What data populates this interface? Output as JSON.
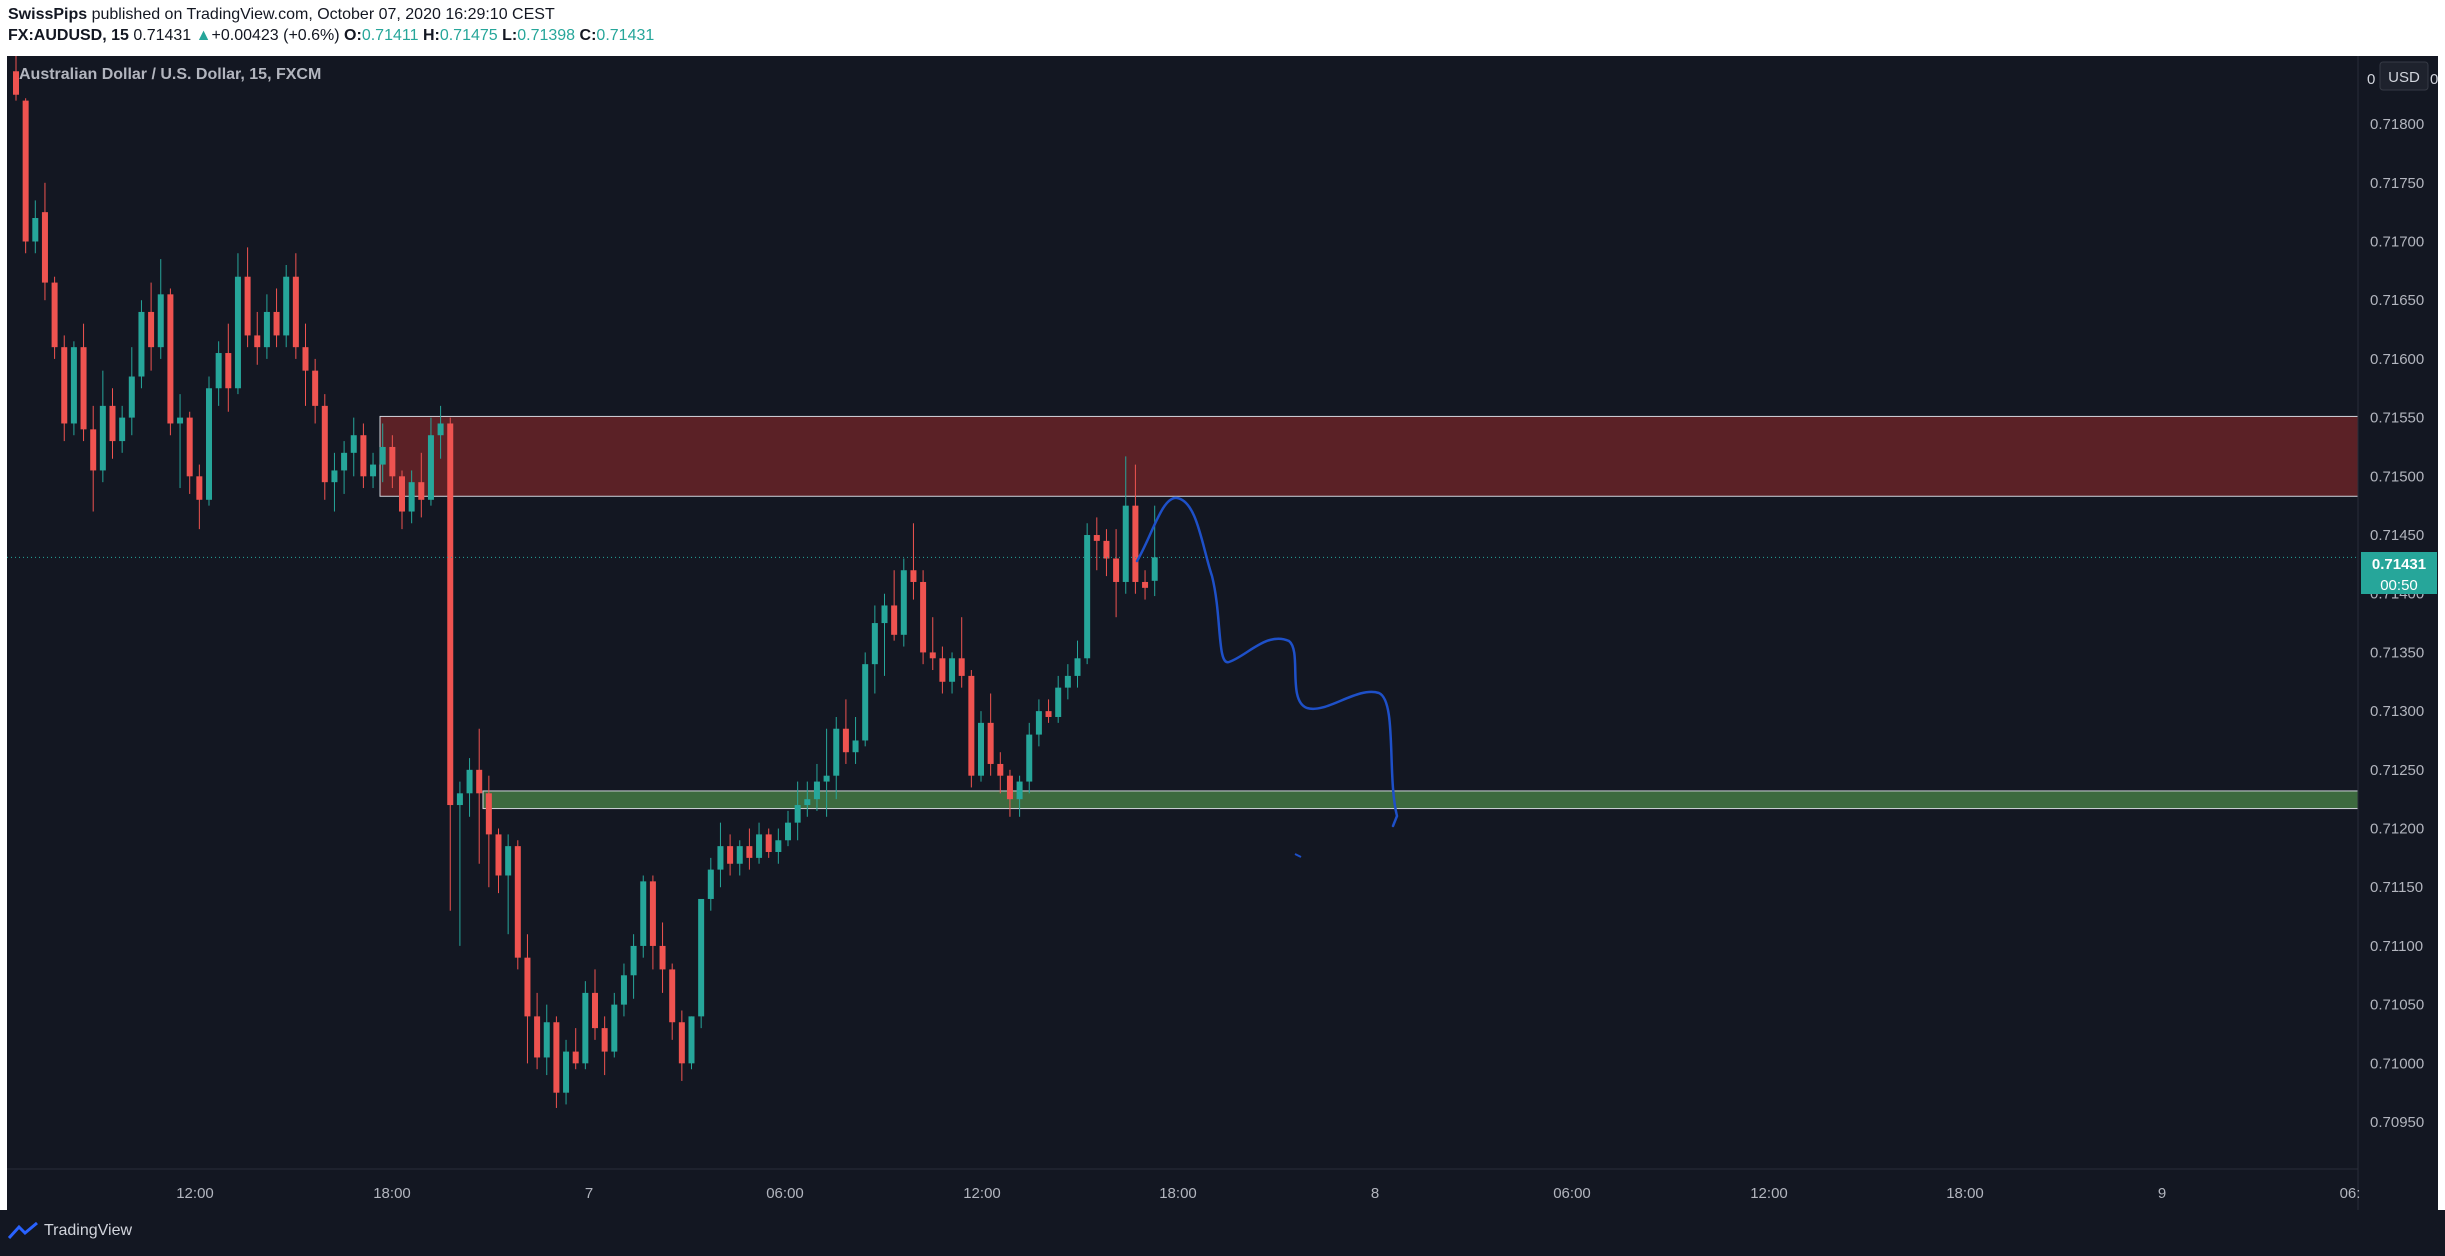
{
  "header": {
    "author": "SwissPips",
    "published_text": "published on TradingView.com, October 07, 2020 16:29:10 CEST",
    "symbol": "FX:AUDUSD, 15",
    "last": "0.71431",
    "change_arrow": "▲",
    "change": "+0.00423 (+0.6%)",
    "o_label": "O:",
    "o_value": "0.71411",
    "h_label": "H:",
    "h_value": "0.71475",
    "l_label": "L:",
    "l_value": "0.71398",
    "c_label": "C:",
    "c_value": "0.71431"
  },
  "chart": {
    "instrument_label": "Australian Dollar / U.S. Dollar, 15, FXCM",
    "currency_button": "USD",
    "price_axis_top_clip": "0",
    "price_axis_top_clip_end": "0",
    "y_tick_labels": [
      "0.71800",
      "0.71750",
      "0.71700",
      "0.71650",
      "0.71600",
      "0.71550",
      "0.71500",
      "0.71450",
      "0.71400",
      "0.71350",
      "0.71300",
      "0.71250",
      "0.71200",
      "0.71150",
      "0.71100",
      "0.71050",
      "0.71000",
      "0.70950"
    ],
    "x_tick_labels": [
      "12:00",
      "18:00",
      "7",
      "06:00",
      "12:00",
      "18:00",
      "8",
      "06:00",
      "12:00",
      "18:00",
      "9",
      "06:"
    ],
    "last_price_label": "0.71431",
    "countdown_label": "00:50",
    "colors": {
      "background": "#131722",
      "up": "#26a69a",
      "down": "#ef5350",
      "resistance_zone": "#5b2126",
      "support_zone": "#3d6a3f",
      "drawing": "#1e50c8"
    }
  },
  "chart_data": {
    "type": "candlestick",
    "symbol": "FX:AUDUSD",
    "timeframe": "15",
    "ylim": [
      0.7091,
      0.71858
    ],
    "zones": [
      {
        "name": "resistance",
        "low": 0.71483,
        "high": 0.71551
      },
      {
        "name": "support",
        "low": 0.71217,
        "high": 0.71232
      }
    ],
    "last_price": 0.71431,
    "candles": [
      {
        "t": 0,
        "o": 0.71845,
        "h": 0.71858,
        "l": 0.7182,
        "c": 0.71825
      },
      {
        "t": 1,
        "o": 0.7182,
        "h": 0.71822,
        "l": 0.7169,
        "c": 0.717
      },
      {
        "t": 2,
        "o": 0.717,
        "h": 0.71735,
        "l": 0.7169,
        "c": 0.7172
      },
      {
        "t": 3,
        "o": 0.71725,
        "h": 0.7175,
        "l": 0.7165,
        "c": 0.71665
      },
      {
        "t": 4,
        "o": 0.71665,
        "h": 0.7167,
        "l": 0.716,
        "c": 0.7161
      },
      {
        "t": 5,
        "o": 0.7161,
        "h": 0.7162,
        "l": 0.7153,
        "c": 0.71545
      },
      {
        "t": 6,
        "o": 0.71545,
        "h": 0.71615,
        "l": 0.71535,
        "c": 0.7161
      },
      {
        "t": 7,
        "o": 0.7161,
        "h": 0.7163,
        "l": 0.7153,
        "c": 0.7154
      },
      {
        "t": 8,
        "o": 0.7154,
        "h": 0.7156,
        "l": 0.7147,
        "c": 0.71505
      },
      {
        "t": 9,
        "o": 0.71505,
        "h": 0.7159,
        "l": 0.71495,
        "c": 0.7156
      },
      {
        "t": 10,
        "o": 0.7156,
        "h": 0.71575,
        "l": 0.71515,
        "c": 0.7153
      },
      {
        "t": 11,
        "o": 0.7153,
        "h": 0.7156,
        "l": 0.7152,
        "c": 0.7155
      },
      {
        "t": 12,
        "o": 0.7155,
        "h": 0.7161,
        "l": 0.71535,
        "c": 0.71585
      },
      {
        "t": 13,
        "o": 0.71585,
        "h": 0.7165,
        "l": 0.71575,
        "c": 0.7164
      },
      {
        "t": 14,
        "o": 0.7164,
        "h": 0.71665,
        "l": 0.7159,
        "c": 0.7161
      },
      {
        "t": 15,
        "o": 0.7161,
        "h": 0.71685,
        "l": 0.716,
        "c": 0.71655
      },
      {
        "t": 16,
        "o": 0.71655,
        "h": 0.7166,
        "l": 0.71535,
        "c": 0.71545
      },
      {
        "t": 17,
        "o": 0.71545,
        "h": 0.7157,
        "l": 0.7149,
        "c": 0.7155
      },
      {
        "t": 18,
        "o": 0.7155,
        "h": 0.71555,
        "l": 0.71485,
        "c": 0.715
      },
      {
        "t": 19,
        "o": 0.715,
        "h": 0.7151,
        "l": 0.71455,
        "c": 0.7148
      },
      {
        "t": 20,
        "o": 0.7148,
        "h": 0.71585,
        "l": 0.71475,
        "c": 0.71575
      },
      {
        "t": 21,
        "o": 0.71575,
        "h": 0.71615,
        "l": 0.7156,
        "c": 0.71605
      },
      {
        "t": 22,
        "o": 0.71605,
        "h": 0.7163,
        "l": 0.71555,
        "c": 0.71575
      },
      {
        "t": 23,
        "o": 0.71575,
        "h": 0.7169,
        "l": 0.7157,
        "c": 0.7167
      },
      {
        "t": 24,
        "o": 0.7167,
        "h": 0.71695,
        "l": 0.7161,
        "c": 0.7162
      },
      {
        "t": 25,
        "o": 0.7162,
        "h": 0.7164,
        "l": 0.71595,
        "c": 0.7161
      },
      {
        "t": 26,
        "o": 0.7161,
        "h": 0.71655,
        "l": 0.716,
        "c": 0.7164
      },
      {
        "t": 27,
        "o": 0.7164,
        "h": 0.7166,
        "l": 0.7161,
        "c": 0.7162
      },
      {
        "t": 28,
        "o": 0.7162,
        "h": 0.7168,
        "l": 0.7161,
        "c": 0.7167
      },
      {
        "t": 29,
        "o": 0.7167,
        "h": 0.7169,
        "l": 0.716,
        "c": 0.7161
      },
      {
        "t": 30,
        "o": 0.7161,
        "h": 0.7163,
        "l": 0.7156,
        "c": 0.7159
      },
      {
        "t": 31,
        "o": 0.7159,
        "h": 0.716,
        "l": 0.71545,
        "c": 0.7156
      },
      {
        "t": 32,
        "o": 0.7156,
        "h": 0.7157,
        "l": 0.7148,
        "c": 0.71495
      },
      {
        "t": 33,
        "o": 0.71495,
        "h": 0.7152,
        "l": 0.7147,
        "c": 0.71505
      },
      {
        "t": 34,
        "o": 0.71505,
        "h": 0.7153,
        "l": 0.71485,
        "c": 0.7152
      },
      {
        "t": 35,
        "o": 0.7152,
        "h": 0.7155,
        "l": 0.715,
        "c": 0.71535
      },
      {
        "t": 36,
        "o": 0.71535,
        "h": 0.71545,
        "l": 0.7149,
        "c": 0.715
      },
      {
        "t": 37,
        "o": 0.715,
        "h": 0.7152,
        "l": 0.7149,
        "c": 0.7151
      },
      {
        "t": 38,
        "o": 0.7151,
        "h": 0.71545,
        "l": 0.71495,
        "c": 0.71525
      },
      {
        "t": 39,
        "o": 0.71525,
        "h": 0.71535,
        "l": 0.7149,
        "c": 0.715
      },
      {
        "t": 40,
        "o": 0.715,
        "h": 0.71505,
        "l": 0.71455,
        "c": 0.7147
      },
      {
        "t": 41,
        "o": 0.7147,
        "h": 0.71505,
        "l": 0.7146,
        "c": 0.71495
      },
      {
        "t": 42,
        "o": 0.71495,
        "h": 0.7152,
        "l": 0.71465,
        "c": 0.7148
      },
      {
        "t": 43,
        "o": 0.7148,
        "h": 0.7155,
        "l": 0.71475,
        "c": 0.71535
      },
      {
        "t": 44,
        "o": 0.71535,
        "h": 0.7156,
        "l": 0.71515,
        "c": 0.71545
      },
      {
        "t": 45,
        "o": 0.71545,
        "h": 0.7155,
        "l": 0.7113,
        "c": 0.7122
      },
      {
        "t": 46,
        "o": 0.7122,
        "h": 0.7124,
        "l": 0.711,
        "c": 0.7123
      },
      {
        "t": 47,
        "o": 0.7123,
        "h": 0.7126,
        "l": 0.7121,
        "c": 0.7125
      },
      {
        "t": 48,
        "o": 0.7125,
        "h": 0.71285,
        "l": 0.7117,
        "c": 0.7123
      },
      {
        "t": 49,
        "o": 0.7123,
        "h": 0.71245,
        "l": 0.7115,
        "c": 0.71195
      },
      {
        "t": 50,
        "o": 0.71195,
        "h": 0.712,
        "l": 0.71145,
        "c": 0.7116
      },
      {
        "t": 51,
        "o": 0.7116,
        "h": 0.71195,
        "l": 0.7111,
        "c": 0.71185
      },
      {
        "t": 52,
        "o": 0.71185,
        "h": 0.7119,
        "l": 0.7108,
        "c": 0.7109
      },
      {
        "t": 53,
        "o": 0.7109,
        "h": 0.7111,
        "l": 0.71,
        "c": 0.7104
      },
      {
        "t": 54,
        "o": 0.7104,
        "h": 0.7106,
        "l": 0.70995,
        "c": 0.71005
      },
      {
        "t": 55,
        "o": 0.71005,
        "h": 0.7105,
        "l": 0.7099,
        "c": 0.71035
      },
      {
        "t": 56,
        "o": 0.71035,
        "h": 0.7104,
        "l": 0.70962,
        "c": 0.70975
      },
      {
        "t": 57,
        "o": 0.70975,
        "h": 0.7102,
        "l": 0.70965,
        "c": 0.7101
      },
      {
        "t": 58,
        "o": 0.7101,
        "h": 0.7103,
        "l": 0.70995,
        "c": 0.71
      },
      {
        "t": 59,
        "o": 0.71,
        "h": 0.7107,
        "l": 0.70995,
        "c": 0.7106
      },
      {
        "t": 60,
        "o": 0.7106,
        "h": 0.7108,
        "l": 0.7102,
        "c": 0.7103
      },
      {
        "t": 61,
        "o": 0.7103,
        "h": 0.7104,
        "l": 0.7099,
        "c": 0.7101
      },
      {
        "t": 62,
        "o": 0.7101,
        "h": 0.7106,
        "l": 0.71005,
        "c": 0.7105
      },
      {
        "t": 63,
        "o": 0.7105,
        "h": 0.71085,
        "l": 0.7104,
        "c": 0.71075
      },
      {
        "t": 64,
        "o": 0.71075,
        "h": 0.7111,
        "l": 0.71055,
        "c": 0.711
      },
      {
        "t": 65,
        "o": 0.711,
        "h": 0.7116,
        "l": 0.7109,
        "c": 0.71155
      },
      {
        "t": 66,
        "o": 0.71155,
        "h": 0.7116,
        "l": 0.7108,
        "c": 0.711
      },
      {
        "t": 67,
        "o": 0.711,
        "h": 0.7112,
        "l": 0.7106,
        "c": 0.7108
      },
      {
        "t": 68,
        "o": 0.7108,
        "h": 0.71085,
        "l": 0.7102,
        "c": 0.71035
      },
      {
        "t": 69,
        "o": 0.71035,
        "h": 0.71045,
        "l": 0.70985,
        "c": 0.71
      },
      {
        "t": 70,
        "o": 0.71,
        "h": 0.7104,
        "l": 0.70995,
        "c": 0.7104
      },
      {
        "t": 71,
        "o": 0.7104,
        "h": 0.7114,
        "l": 0.7103,
        "c": 0.7114
      },
      {
        "t": 72,
        "o": 0.7114,
        "h": 0.71175,
        "l": 0.7113,
        "c": 0.71165
      },
      {
        "t": 73,
        "o": 0.71165,
        "h": 0.71205,
        "l": 0.7115,
        "c": 0.71185
      },
      {
        "t": 74,
        "o": 0.71185,
        "h": 0.71195,
        "l": 0.7116,
        "c": 0.7117
      },
      {
        "t": 75,
        "o": 0.7117,
        "h": 0.7119,
        "l": 0.7116,
        "c": 0.71185
      },
      {
        "t": 76,
        "o": 0.71185,
        "h": 0.712,
        "l": 0.71165,
        "c": 0.71175
      },
      {
        "t": 77,
        "o": 0.71175,
        "h": 0.71205,
        "l": 0.7117,
        "c": 0.71195
      },
      {
        "t": 78,
        "o": 0.71195,
        "h": 0.712,
        "l": 0.71175,
        "c": 0.7118
      },
      {
        "t": 79,
        "o": 0.7118,
        "h": 0.712,
        "l": 0.7117,
        "c": 0.7119
      },
      {
        "t": 80,
        "o": 0.7119,
        "h": 0.71215,
        "l": 0.71185,
        "c": 0.71205
      },
      {
        "t": 81,
        "o": 0.71205,
        "h": 0.7124,
        "l": 0.7119,
        "c": 0.7122
      },
      {
        "t": 82,
        "o": 0.7122,
        "h": 0.7124,
        "l": 0.7121,
        "c": 0.71225
      },
      {
        "t": 83,
        "o": 0.71225,
        "h": 0.71255,
        "l": 0.71215,
        "c": 0.7124
      },
      {
        "t": 84,
        "o": 0.7124,
        "h": 0.71285,
        "l": 0.7121,
        "c": 0.71245
      },
      {
        "t": 85,
        "o": 0.71245,
        "h": 0.71295,
        "l": 0.71225,
        "c": 0.71285
      },
      {
        "t": 86,
        "o": 0.71285,
        "h": 0.7131,
        "l": 0.71255,
        "c": 0.71265
      },
      {
        "t": 87,
        "o": 0.71265,
        "h": 0.71295,
        "l": 0.71255,
        "c": 0.71275
      },
      {
        "t": 88,
        "o": 0.71275,
        "h": 0.7135,
        "l": 0.7127,
        "c": 0.7134
      },
      {
        "t": 89,
        "o": 0.7134,
        "h": 0.7139,
        "l": 0.71315,
        "c": 0.71375
      },
      {
        "t": 90,
        "o": 0.71375,
        "h": 0.714,
        "l": 0.7133,
        "c": 0.7139
      },
      {
        "t": 91,
        "o": 0.7139,
        "h": 0.7142,
        "l": 0.7136,
        "c": 0.71365
      },
      {
        "t": 92,
        "o": 0.71365,
        "h": 0.7143,
        "l": 0.71355,
        "c": 0.7142
      },
      {
        "t": 93,
        "o": 0.7142,
        "h": 0.7146,
        "l": 0.71395,
        "c": 0.7141
      },
      {
        "t": 94,
        "o": 0.7141,
        "h": 0.7142,
        "l": 0.7134,
        "c": 0.7135
      },
      {
        "t": 95,
        "o": 0.7135,
        "h": 0.7138,
        "l": 0.71335,
        "c": 0.71345
      },
      {
        "t": 96,
        "o": 0.71345,
        "h": 0.71355,
        "l": 0.71315,
        "c": 0.71325
      },
      {
        "t": 97,
        "o": 0.71325,
        "h": 0.7135,
        "l": 0.71315,
        "c": 0.71345
      },
      {
        "t": 98,
        "o": 0.71345,
        "h": 0.7138,
        "l": 0.7132,
        "c": 0.7133
      },
      {
        "t": 99,
        "o": 0.7133,
        "h": 0.71335,
        "l": 0.71235,
        "c": 0.71245
      },
      {
        "t": 100,
        "o": 0.71245,
        "h": 0.713,
        "l": 0.7124,
        "c": 0.7129
      },
      {
        "t": 101,
        "o": 0.7129,
        "h": 0.71315,
        "l": 0.71245,
        "c": 0.71255
      },
      {
        "t": 102,
        "o": 0.71255,
        "h": 0.71265,
        "l": 0.7123,
        "c": 0.71245
      },
      {
        "t": 103,
        "o": 0.71245,
        "h": 0.7125,
        "l": 0.7121,
        "c": 0.71225
      },
      {
        "t": 104,
        "o": 0.71225,
        "h": 0.71245,
        "l": 0.7121,
        "c": 0.7124
      },
      {
        "t": 105,
        "o": 0.7124,
        "h": 0.7129,
        "l": 0.7123,
        "c": 0.7128
      },
      {
        "t": 106,
        "o": 0.7128,
        "h": 0.7131,
        "l": 0.7127,
        "c": 0.713
      },
      {
        "t": 107,
        "o": 0.713,
        "h": 0.7131,
        "l": 0.7129,
        "c": 0.71295
      },
      {
        "t": 108,
        "o": 0.71295,
        "h": 0.7133,
        "l": 0.7129,
        "c": 0.7132
      },
      {
        "t": 109,
        "o": 0.7132,
        "h": 0.7134,
        "l": 0.7131,
        "c": 0.7133
      },
      {
        "t": 110,
        "o": 0.7133,
        "h": 0.7136,
        "l": 0.7132,
        "c": 0.71345
      },
      {
        "t": 111,
        "o": 0.71345,
        "h": 0.7146,
        "l": 0.7134,
        "c": 0.7145
      },
      {
        "t": 112,
        "o": 0.7145,
        "h": 0.71465,
        "l": 0.7142,
        "c": 0.71445
      },
      {
        "t": 113,
        "o": 0.71445,
        "h": 0.71455,
        "l": 0.71415,
        "c": 0.7143
      },
      {
        "t": 114,
        "o": 0.7143,
        "h": 0.71455,
        "l": 0.7138,
        "c": 0.7141
      },
      {
        "t": 115,
        "o": 0.7141,
        "h": 0.71517,
        "l": 0.714,
        "c": 0.71475
      },
      {
        "t": 116,
        "o": 0.71475,
        "h": 0.7151,
        "l": 0.714,
        "c": 0.7141
      },
      {
        "t": 117,
        "o": 0.7141,
        "h": 0.7142,
        "l": 0.71395,
        "c": 0.71405
      },
      {
        "t": 118,
        "o": 0.71411,
        "h": 0.71475,
        "l": 0.71398,
        "c": 0.71431
      }
    ]
  },
  "footer": {
    "brand": "TradingView"
  }
}
